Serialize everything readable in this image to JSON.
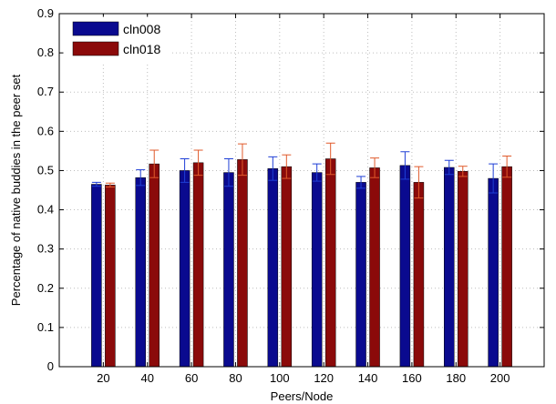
{
  "chart_data": {
    "type": "bar",
    "title": "",
    "xlabel": "Peers/Node",
    "ylabel": "Percentage of native buddies in the peer set",
    "categories": [
      "20",
      "40",
      "60",
      "80",
      "100",
      "120",
      "140",
      "160",
      "180",
      "200"
    ],
    "series": [
      {
        "name": "cln008",
        "color": "#0a0a8f",
        "error_color": "#1f3fd6",
        "values": [
          0.465,
          0.482,
          0.5,
          0.495,
          0.505,
          0.495,
          0.47,
          0.513,
          0.508,
          0.48
        ],
        "errors": [
          0.005,
          0.02,
          0.03,
          0.035,
          0.03,
          0.022,
          0.015,
          0.035,
          0.018,
          0.037
        ]
      },
      {
        "name": "cln018",
        "color": "#8b0a0a",
        "error_color": "#e05a2b",
        "values": [
          0.463,
          0.517,
          0.52,
          0.528,
          0.51,
          0.53,
          0.507,
          0.47,
          0.498,
          0.51
        ],
        "errors": [
          0.005,
          0.035,
          0.032,
          0.04,
          0.03,
          0.04,
          0.025,
          0.04,
          0.013,
          0.027
        ]
      }
    ],
    "yticks": [
      "0",
      "0.1",
      "0.2",
      "0.3",
      "0.4",
      "0.5",
      "0.6",
      "0.7",
      "0.8",
      "0.9"
    ],
    "ylim": [
      0,
      0.9
    ],
    "grid": true,
    "legend": "top-left"
  }
}
